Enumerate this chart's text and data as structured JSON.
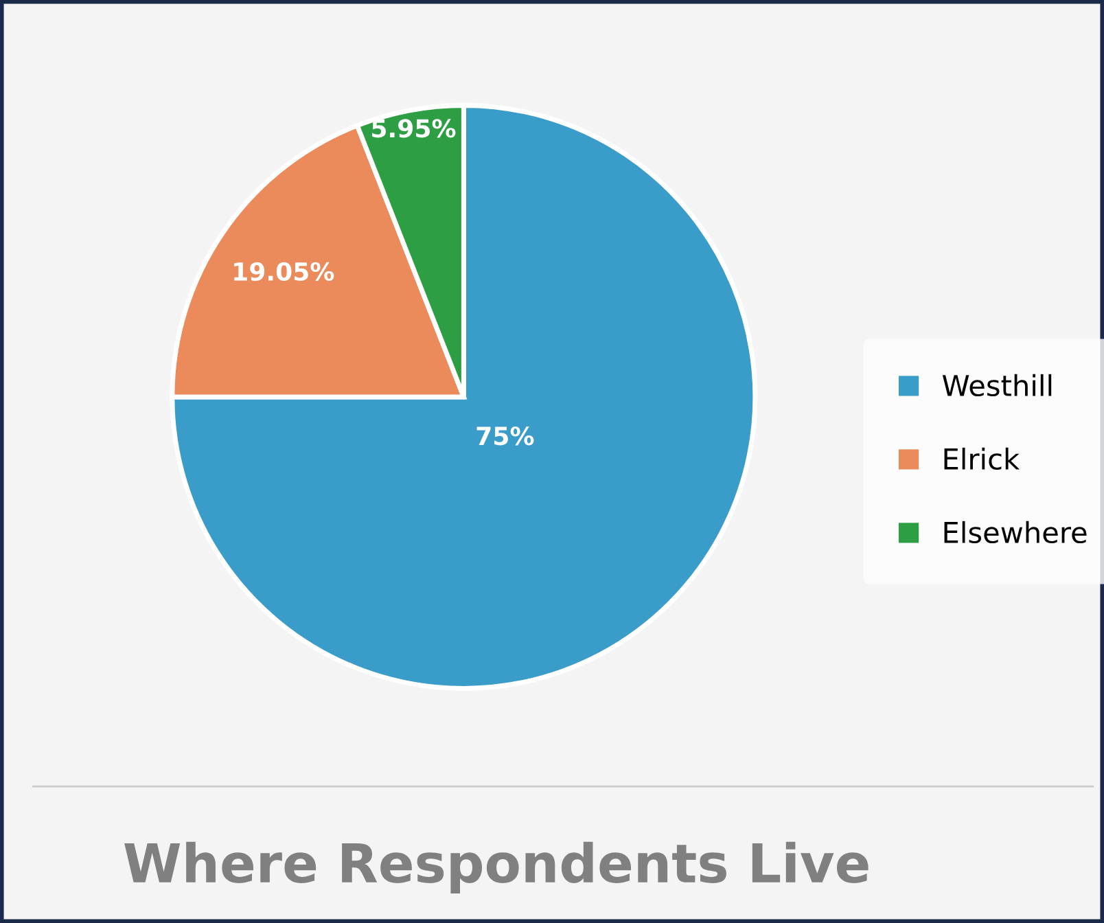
{
  "chart_data": {
    "type": "pie",
    "title": "Where Respondents Live",
    "categories": [
      "Westhill",
      "Elrick",
      "Elsewhere"
    ],
    "values": [
      75,
      19.05,
      5.95
    ],
    "colors": [
      "#3a9cc8",
      "#eb8a5a",
      "#2e9e44"
    ],
    "value_labels": [
      "75%",
      "19.05%",
      "5.95%"
    ],
    "legend": "right"
  }
}
